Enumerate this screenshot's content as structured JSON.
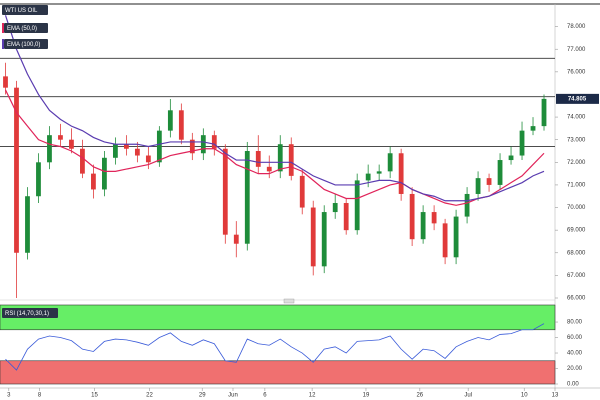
{
  "chart_data": [
    {
      "type": "candlestick",
      "title": "WTI US OIL",
      "x": [
        0,
        1,
        2,
        3,
        4,
        5,
        6,
        7,
        8,
        9,
        10,
        11,
        12,
        13,
        14,
        15,
        16,
        17,
        18,
        19,
        20,
        21,
        22,
        23,
        24,
        25,
        26,
        27,
        28,
        29,
        30,
        31,
        32,
        33,
        34,
        35,
        36,
        37,
        38,
        39,
        40,
        41,
        42,
        43,
        44,
        45,
        46,
        47,
        48,
        49
      ],
      "open": [
        75.8,
        75.3,
        68.0,
        70.5,
        72.0,
        73.2,
        73.0,
        72.6,
        71.5,
        70.8,
        72.2,
        72.8,
        72.6,
        72.3,
        72.0,
        73.4,
        74.3,
        73.0,
        72.4,
        73.2,
        72.6,
        68.8,
        68.4,
        72.5,
        71.8,
        71.6,
        72.8,
        71.4,
        70.0,
        67.4,
        69.8,
        70.2,
        69.0,
        71.2,
        71.5,
        71.6,
        72.4,
        70.6,
        68.6,
        69.8,
        69.3,
        67.8,
        69.6,
        70.6,
        71.3,
        71.0,
        72.1,
        72.3,
        73.4,
        73.6
      ],
      "high": [
        76.4,
        75.6,
        70.9,
        72.4,
        73.6,
        73.7,
        73.5,
        73.0,
        71.9,
        72.5,
        73.1,
        73.2,
        72.9,
        72.7,
        73.6,
        74.8,
        74.6,
        73.3,
        73.5,
        73.4,
        72.8,
        69.4,
        72.9,
        73.2,
        72.3,
        73.2,
        73.1,
        71.7,
        70.3,
        70.1,
        70.6,
        70.4,
        71.5,
        71.9,
        71.9,
        72.7,
        72.6,
        70.9,
        70.1,
        70.1,
        69.5,
        69.9,
        70.9,
        71.6,
        71.5,
        72.4,
        72.7,
        73.8,
        74.0,
        75.0
      ],
      "low": [
        75.0,
        66.0,
        67.7,
        70.2,
        71.7,
        72.7,
        72.4,
        71.3,
        70.4,
        70.5,
        71.9,
        72.3,
        72.0,
        71.7,
        71.8,
        73.1,
        72.8,
        72.1,
        72.1,
        72.3,
        68.4,
        67.8,
        68.1,
        71.5,
        71.3,
        71.3,
        71.2,
        69.7,
        67.0,
        67.1,
        69.5,
        68.8,
        68.8,
        70.9,
        71.2,
        71.3,
        70.3,
        68.3,
        68.4,
        69.0,
        67.5,
        67.5,
        69.3,
        70.3,
        70.7,
        70.8,
        71.9,
        72.1,
        73.2,
        73.4
      ],
      "close": [
        75.3,
        68.0,
        70.5,
        72.0,
        73.2,
        73.0,
        72.6,
        71.5,
        70.8,
        72.2,
        72.8,
        72.6,
        72.3,
        72.0,
        73.4,
        74.3,
        73.0,
        72.4,
        73.2,
        72.6,
        68.8,
        68.4,
        72.5,
        71.8,
        71.6,
        72.8,
        71.4,
        70.0,
        67.4,
        69.8,
        70.2,
        69.0,
        71.2,
        71.5,
        71.6,
        72.4,
        70.6,
        68.6,
        69.8,
        69.3,
        67.8,
        69.6,
        70.6,
        71.3,
        71.0,
        72.1,
        72.3,
        73.4,
        73.6,
        74.805
      ],
      "up_color": "#1e8c3a",
      "down_color": "#e03a3a",
      "series": [
        {
          "name": "EMA (50,0)",
          "color": "#e0245a",
          "values": [
            75.2,
            74.2,
            73.6,
            73.0,
            72.8,
            72.7,
            72.5,
            72.2,
            71.8,
            71.6,
            71.6,
            71.7,
            71.8,
            71.9,
            72.1,
            72.3,
            72.4,
            72.5,
            72.6,
            72.6,
            72.3,
            71.9,
            71.7,
            71.5,
            71.5,
            71.7,
            71.8,
            71.6,
            71.2,
            70.8,
            70.6,
            70.4,
            70.4,
            70.6,
            70.8,
            71.0,
            71.1,
            70.8,
            70.6,
            70.4,
            70.2,
            70.1,
            70.2,
            70.4,
            70.5,
            70.8,
            71.1,
            71.4,
            71.9,
            72.4
          ]
        },
        {
          "name": "EMA (100,0)",
          "color": "#5a3cb0",
          "values": [
            78.5,
            77.0,
            75.9,
            75.0,
            74.3,
            73.9,
            73.6,
            73.4,
            73.1,
            72.9,
            72.8,
            72.8,
            72.8,
            72.7,
            72.8,
            72.9,
            72.9,
            72.9,
            72.9,
            72.8,
            72.4,
            72.1,
            72.1,
            72.0,
            72.0,
            72.0,
            72.0,
            71.7,
            71.4,
            71.2,
            71.0,
            71.0,
            71.0,
            71.1,
            71.2,
            71.2,
            71.1,
            70.8,
            70.6,
            70.5,
            70.3,
            70.3,
            70.3,
            70.4,
            70.5,
            70.7,
            70.9,
            71.1,
            71.4,
            71.6
          ]
        }
      ],
      "hlines": [
        76.6,
        74.9,
        72.7
      ],
      "last_price": {
        "value": 74.805,
        "label": "74.805"
      },
      "xlim": [
        -0.5,
        50
      ],
      "xticks": [
        {
          "value": 0.3,
          "label": "3"
        },
        {
          "value": 3.1,
          "label": "8"
        },
        {
          "value": 8.1,
          "label": "15"
        },
        {
          "value": 13.1,
          "label": "22"
        },
        {
          "value": 17.9,
          "label": "29"
        },
        {
          "value": 20.7,
          "label": "Jun"
        },
        {
          "value": 23.6,
          "label": "6"
        },
        {
          "value": 27.9,
          "label": "12"
        },
        {
          "value": 32.8,
          "label": "19"
        },
        {
          "value": 37.7,
          "label": "26"
        },
        {
          "value": 42.1,
          "label": "Jul"
        },
        {
          "value": 47.2,
          "label": "10"
        },
        {
          "value": 50,
          "label": "13"
        }
      ],
      "ylim": [
        66,
        79
      ],
      "yticks": [
        {
          "value": 66,
          "label": "66.000"
        },
        {
          "value": 67,
          "label": "67.000"
        },
        {
          "value": 68,
          "label": "68.000"
        },
        {
          "value": 69,
          "label": "69.000"
        },
        {
          "value": 70,
          "label": "70.000"
        },
        {
          "value": 71,
          "label": "71.000"
        },
        {
          "value": 72,
          "label": "72.000"
        },
        {
          "value": 73,
          "label": "73.000"
        },
        {
          "value": 74,
          "label": "74.000"
        },
        {
          "value": 76,
          "label": "76.000"
        },
        {
          "value": 77,
          "label": "77.000"
        },
        {
          "value": 78,
          "label": "78.000"
        }
      ]
    },
    {
      "type": "line",
      "title": "RSI (14,70,30,1)",
      "color": "#3a5bd9",
      "values": [
        32,
        18,
        45,
        58,
        62,
        60,
        56,
        45,
        42,
        55,
        58,
        57,
        54,
        50,
        60,
        66,
        55,
        50,
        57,
        52,
        30,
        28,
        58,
        52,
        50,
        58,
        48,
        40,
        28,
        45,
        48,
        40,
        55,
        56,
        57,
        62,
        45,
        32,
        45,
        43,
        33,
        48,
        55,
        60,
        57,
        64,
        65,
        70,
        70,
        78
      ],
      "upper": 70,
      "lower": 30,
      "upper_color": "#66ee66",
      "lower_color": "#f07070",
      "ylim": [
        0,
        102
      ],
      "yticks": [
        {
          "value": 0,
          "label": "0.00"
        },
        {
          "value": 20,
          "label": "20.00"
        },
        {
          "value": 40,
          "label": "40.00"
        },
        {
          "value": 60,
          "label": "60.00"
        },
        {
          "value": 80,
          "label": "80.00"
        }
      ]
    }
  ]
}
